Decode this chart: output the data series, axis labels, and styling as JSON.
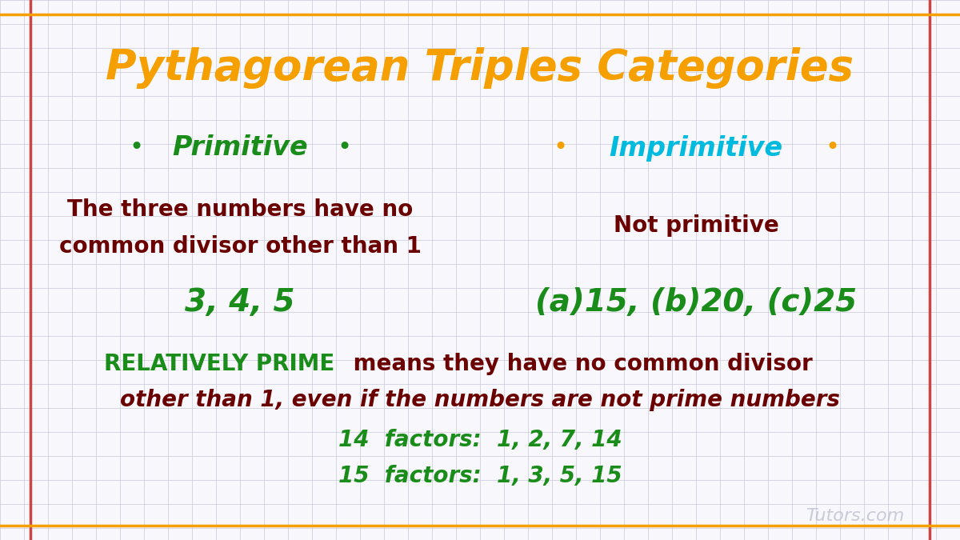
{
  "title": "Pythagorean Triples Categories",
  "title_color": "#F5A000",
  "title_fontsize": 38,
  "bg_color": "#F7F7FC",
  "grid_color": "#C8C8DC",
  "border_color_red": "#CC4444",
  "border_color_orange": "#F5A000",
  "primitive_label": "Primitive",
  "primitive_label_color": "#1A8C1A",
  "primitive_dot_color": "#1A8C1A",
  "primitive_desc_line1": "The three numbers have no",
  "primitive_desc_line2": "common divisor other than 1",
  "primitive_desc_color": "#6B0000",
  "primitive_example": "3, 4, 5",
  "primitive_example_color": "#1A8C1A",
  "imprimitive_label": "Imprimitive",
  "imprimitive_label_color": "#00BBDD",
  "imprimitive_dot_color": "#F5A000",
  "imprimitive_desc": "Not primitive",
  "imprimitive_desc_color": "#6B0000",
  "imprimitive_example": "(a)15, (b)20, (c)25",
  "imprimitive_example_color": "#1A8C1A",
  "rel_prime_bold": "RELATIVELY PRIME",
  "rel_prime_bold_color": "#1A8C1A",
  "rel_prime_rest": " means they have no common divisor",
  "rel_prime_rest_color": "#6B0000",
  "rel_prime_line2": "other than 1, even if the numbers are not prime numbers",
  "rel_prime_line2_color": "#6B0000",
  "factors_line1": "14  factors:  1, 2, 7, 14",
  "factors_line2": "15  factors:  1, 3, 5, 15",
  "factors_color": "#1A8C1A",
  "watermark": "Tutors.com",
  "watermark_color": "#BBBBCC"
}
